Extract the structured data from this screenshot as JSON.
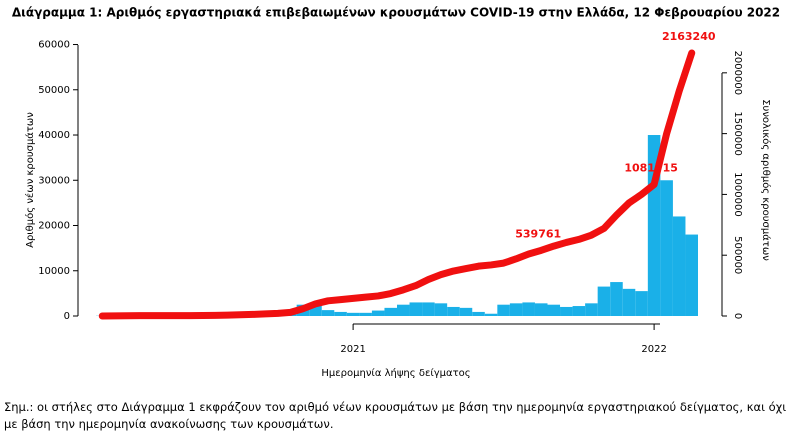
{
  "chart_data": {
    "type": "bar-line",
    "title": "Διάγραμμα 1: Αριθμός εργαστηριακά επιβεβαιωμένων κρουσμάτων COVID-19 στην Ελλάδα, 12 Φεβρουαρίου 2022",
    "xlabel": "Ημερομηνία λήψης δείγματος",
    "ylabel": "Αριθμός νέων κρουσμάτων",
    "y2label": "Συνολικός αριθμός κρουσμάτων",
    "note": "Σημ.: οι στήλες στο Διάγραμμα 1 εκφράζουν τον αριθμό νέων κρουσμάτων με βάση την ημερομηνία εργαστηριακού δείγματος, και όχι με βάση την ημερομηνία ανακοίνωσης των κρουσμάτων.",
    "categories": [
      null,
      null,
      null,
      null,
      null,
      null,
      null,
      null,
      null,
      null,
      null,
      null,
      null,
      null,
      null,
      null,
      null,
      null,
      null,
      null,
      "2021",
      null,
      null,
      null,
      null,
      null,
      null,
      null,
      null,
      null,
      null,
      null,
      null,
      null,
      null,
      null,
      null,
      null,
      null,
      null,
      null,
      null,
      null,
      null,
      "2022",
      null,
      null,
      null
    ],
    "series": [
      {
        "type": "bar",
        "color": "#1ab0e8",
        "values": [
          50,
          100,
          50,
          30,
          20,
          10,
          20,
          40,
          40,
          50,
          200,
          250,
          300,
          350,
          450,
          700,
          2500,
          2500,
          1300,
          900,
          700,
          700,
          1200,
          1800,
          2500,
          3000,
          3000,
          2800,
          2000,
          1800,
          900,
          500,
          2500,
          2800,
          3000,
          2800,
          2500,
          2000,
          2200,
          2800,
          6500,
          7500,
          6000,
          5500,
          40000,
          30000,
          22000,
          18000
        ]
      },
      {
        "type": "line",
        "axis": "y2",
        "color": "#f01010",
        "values": [
          100,
          1000,
          2000,
          2600,
          2900,
          3000,
          3200,
          3400,
          4000,
          5000,
          7000,
          10000,
          13000,
          17000,
          22000,
          30000,
          60000,
          100000,
          125000,
          135000,
          145000,
          155000,
          165000,
          185000,
          215000,
          250000,
          300000,
          340000,
          370000,
          390000,
          410000,
          420000,
          435000,
          470000,
          510000,
          539761,
          575000,
          605000,
          630000,
          665000,
          720000,
          830000,
          930000,
          1000000,
          1081715,
          1500000,
          1850000,
          2163240
        ],
        "value_labels": [
          null,
          null,
          null,
          null,
          null,
          null,
          null,
          null,
          null,
          null,
          null,
          null,
          null,
          null,
          null,
          null,
          null,
          null,
          null,
          null,
          null,
          null,
          null,
          null,
          null,
          null,
          null,
          null,
          null,
          null,
          null,
          null,
          null,
          null,
          null,
          "539761",
          null,
          null,
          null,
          null,
          null,
          null,
          null,
          null,
          "1081715",
          null,
          null,
          "2163240"
        ]
      }
    ],
    "ylim": [
      0,
      61000
    ],
    "yticks": [
      0,
      10000,
      20000,
      30000,
      40000,
      50000,
      60000
    ],
    "y2lim": [
      0,
      2270000
    ],
    "y2ticks": [
      0,
      500000,
      1000000,
      1500000,
      2000000
    ]
  }
}
